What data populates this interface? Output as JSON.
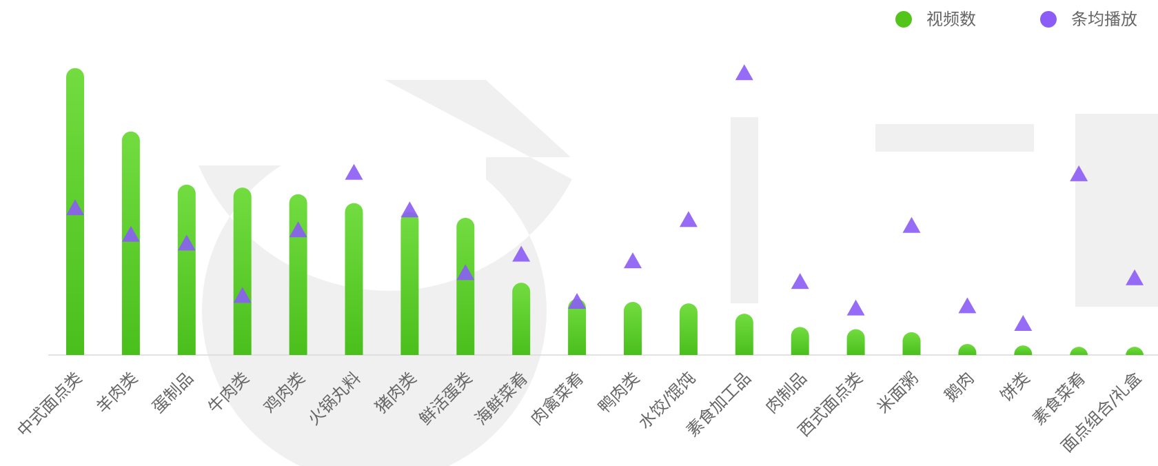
{
  "chart_data": {
    "type": "bar",
    "categories": [
      "中式面点类",
      "羊肉类",
      "蛋制品",
      "牛肉类",
      "鸡肉类",
      "火锅丸料",
      "猪肉类",
      "鲜活蛋类",
      "海鲜菜肴",
      "肉禽菜肴",
      "鸭肉类",
      "水饺/馄饨",
      "素食加工品",
      "肉制品",
      "西式面点类",
      "米面粥",
      "鹅肉",
      "饼类",
      "素食菜肴",
      "面点组合/礼盒"
    ],
    "series": [
      {
        "name": "视频数",
        "color": "#52c41a",
        "values": [
          389,
          303,
          231,
          227,
          218,
          206,
          194,
          186,
          98,
          76,
          72,
          70,
          56,
          38,
          35,
          31,
          15,
          13,
          10,
          10
        ]
      },
      {
        "name": "条均播放",
        "color": "#8b5cf6",
        "axis": "y2",
        "values": [
          199,
          163,
          151,
          80,
          169,
          247,
          196,
          111,
          136,
          72,
          127,
          183,
          382,
          99,
          63,
          175,
          66,
          42,
          245,
          104
        ]
      }
    ],
    "ylim": [
      0,
      400
    ],
    "y2lim": [
      0,
      400
    ],
    "legend": "top-right"
  }
}
